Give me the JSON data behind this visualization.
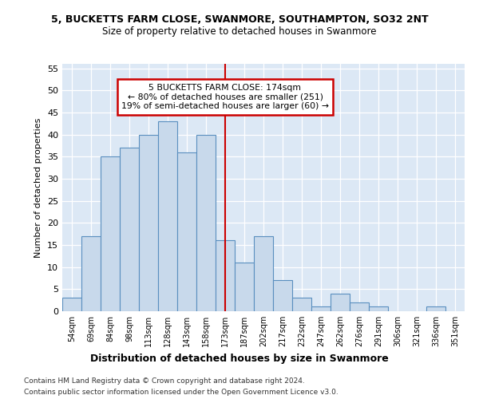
{
  "title1": "5, BUCKETTS FARM CLOSE, SWANMORE, SOUTHAMPTON, SO32 2NT",
  "title2": "Size of property relative to detached houses in Swanmore",
  "xlabel": "Distribution of detached houses by size in Swanmore",
  "ylabel": "Number of detached properties",
  "categories": [
    "54sqm",
    "69sqm",
    "84sqm",
    "98sqm",
    "113sqm",
    "128sqm",
    "143sqm",
    "158sqm",
    "173sqm",
    "187sqm",
    "202sqm",
    "217sqm",
    "232sqm",
    "247sqm",
    "262sqm",
    "276sqm",
    "291sqm",
    "306sqm",
    "321sqm",
    "336sqm",
    "351sqm"
  ],
  "values": [
    3,
    17,
    35,
    37,
    40,
    43,
    36,
    40,
    16,
    11,
    17,
    7,
    3,
    1,
    4,
    2,
    1,
    0,
    0,
    1,
    0
  ],
  "bar_color": "#c8d9eb",
  "bar_edge_color": "#5a8fbf",
  "vline_color": "#cc0000",
  "annotation_text": "5 BUCKETTS FARM CLOSE: 174sqm\n← 80% of detached houses are smaller (251)\n19% of semi-detached houses are larger (60) →",
  "annotation_box_color": "white",
  "annotation_box_edge_color": "#cc0000",
  "ylim": [
    0,
    56
  ],
  "yticks": [
    0,
    5,
    10,
    15,
    20,
    25,
    30,
    35,
    40,
    45,
    50,
    55
  ],
  "footnote1": "Contains HM Land Registry data © Crown copyright and database right 2024.",
  "footnote2": "Contains public sector information licensed under the Open Government Licence v3.0.",
  "bg_color": "#ffffff",
  "plot_bg_color": "#dce8f5",
  "grid_color": "#ffffff",
  "vline_index": 8
}
